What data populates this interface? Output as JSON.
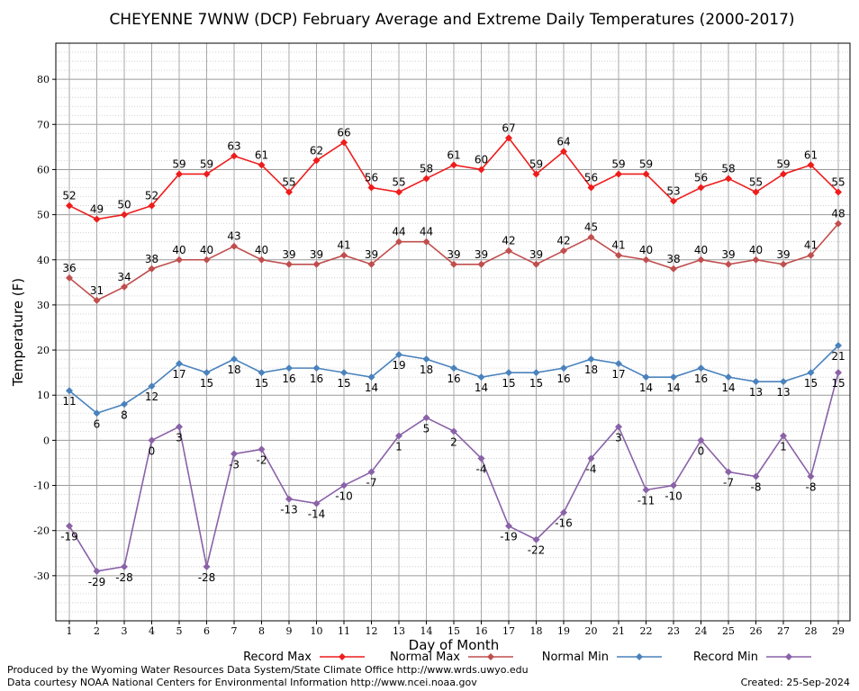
{
  "chart_data": {
    "type": "line",
    "title": "CHEYENNE 7WNW (DCP) February Average and Extreme Daily Temperatures (2000-2017)",
    "xlabel": "Day of Month",
    "ylabel": "Temperature (F)",
    "ylim": [
      -40,
      88
    ],
    "yticks": [
      -30,
      -20,
      -10,
      0,
      10,
      20,
      30,
      40,
      50,
      60,
      70,
      80
    ],
    "x": [
      1,
      2,
      3,
      4,
      5,
      6,
      7,
      8,
      9,
      10,
      11,
      12,
      13,
      14,
      15,
      16,
      17,
      18,
      19,
      20,
      21,
      22,
      23,
      24,
      25,
      26,
      27,
      28,
      29
    ],
    "grid": true,
    "legend": "bottom",
    "series": [
      {
        "name": "Record Max",
        "color": "#ee1c1c",
        "values": [
          52,
          49,
          50,
          52,
          59,
          59,
          63,
          61,
          55,
          62,
          66,
          56,
          55,
          58,
          61,
          60,
          67,
          59,
          64,
          56,
          59,
          59,
          53,
          56,
          58,
          55,
          59,
          61,
          55
        ]
      },
      {
        "name": "Normal Max",
        "color": "#c04e4e",
        "values": [
          36,
          31,
          34,
          38,
          40,
          40,
          43,
          40,
          39,
          39,
          41,
          39,
          44,
          44,
          39,
          39,
          42,
          39,
          42,
          45,
          41,
          40,
          38,
          40,
          39,
          40,
          39,
          41,
          48
        ]
      },
      {
        "name": "Normal Min",
        "color": "#4a82bc",
        "values": [
          11,
          6,
          8,
          12,
          17,
          15,
          18,
          15,
          16,
          16,
          15,
          14,
          19,
          18,
          16,
          14,
          15,
          15,
          16,
          18,
          17,
          14,
          14,
          16,
          14,
          13,
          13,
          15,
          21
        ]
      },
      {
        "name": "Record Min",
        "color": "#8a62a8",
        "values": [
          -19,
          -29,
          -28,
          0,
          3,
          -28,
          -3,
          -2,
          -13,
          -14,
          -10,
          -7,
          1,
          5,
          2,
          -4,
          -19,
          -22,
          -16,
          -4,
          3,
          -11,
          -10,
          0,
          -7,
          -8,
          1,
          -8,
          15
        ]
      }
    ]
  },
  "footer": {
    "line1": "Produced by the Wyoming Water Resources Data System/State Climate Office http://www.wrds.uwyo.edu",
    "line2": "Data courtesy NOAA National Centers for Environmental Information http://www.ncei.noaa.gov",
    "created": "Created:  25-Sep-2024"
  }
}
